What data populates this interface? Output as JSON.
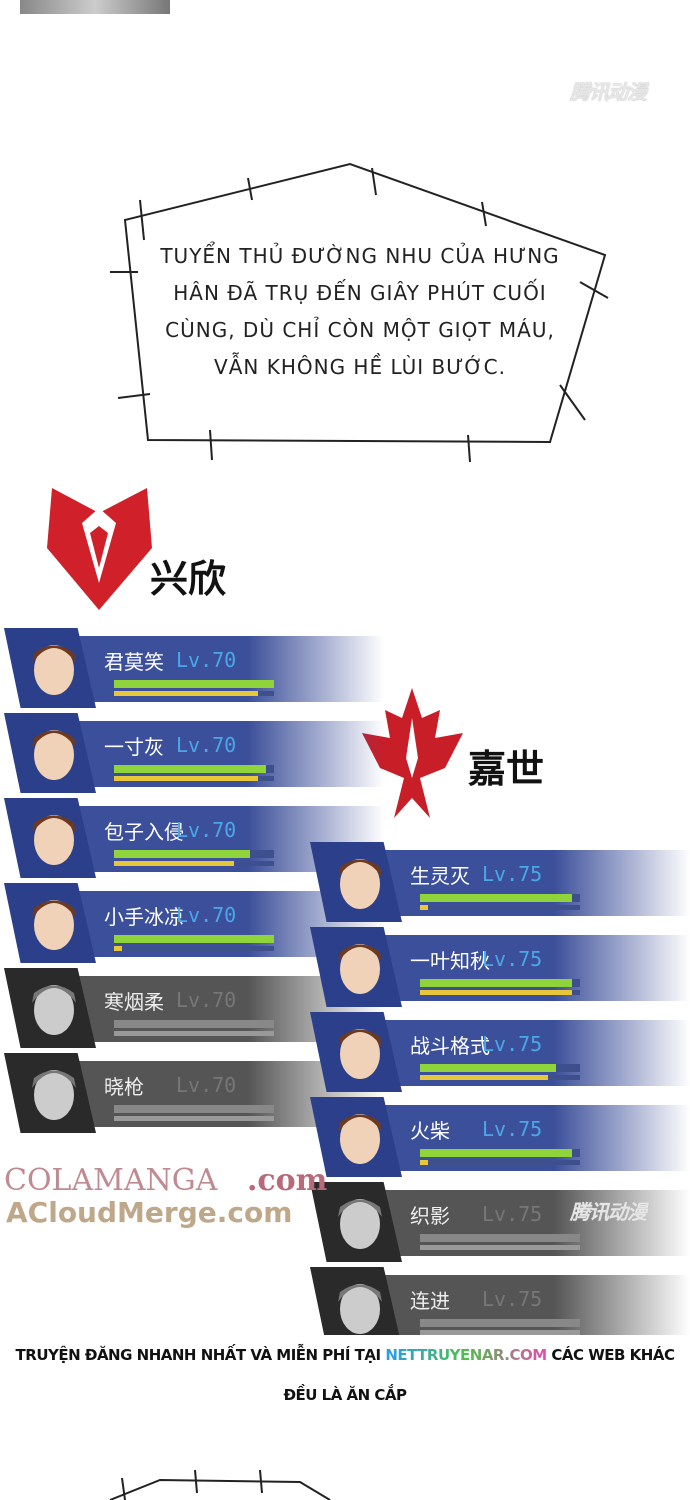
{
  "watermarks": {
    "tencent": "腾讯动漫",
    "colamanga": "COLAMANGA",
    "colamanga_tld": ".com",
    "acloud": "ACloudMerge.com"
  },
  "bubble": {
    "text": "TUYỂN THỦ ĐƯỜNG NHU CỦA HƯNG HÂN ĐÃ TRỤ ĐẾN GIÂY PHÚT CUỐI CÙNG, DÙ CHỈ CÒN MỘT GIỌT MÁU, VẪN KHÔNG HỀ LÙI BƯỚC."
  },
  "teams": [
    {
      "name": "兴欣",
      "color": "#d0202a",
      "players": [
        {
          "name": "君莫笑",
          "level": "Lv.70",
          "hp": 1.0,
          "mp": 0.9,
          "eliminated": false
        },
        {
          "name": "一寸灰",
          "level": "Lv.70",
          "hp": 0.95,
          "mp": 0.9,
          "eliminated": false
        },
        {
          "name": "包子入侵",
          "level": "Lv.70",
          "hp": 0.85,
          "mp": 0.75,
          "eliminated": false
        },
        {
          "name": "小手冰凉",
          "level": "Lv.70",
          "hp": 1.0,
          "mp": 0.05,
          "eliminated": false
        },
        {
          "name": "寒烟柔",
          "level": "Lv.70",
          "hp": 0,
          "mp": 0,
          "eliminated": true
        },
        {
          "name": "晓枪",
          "level": "Lv.70",
          "hp": 0,
          "mp": 0,
          "eliminated": true
        }
      ]
    },
    {
      "name": "嘉世",
      "color": "#c81e28",
      "players": [
        {
          "name": "生灵灭",
          "level": "Lv.75",
          "hp": 0.95,
          "mp": 0.05,
          "eliminated": false
        },
        {
          "name": "一叶知秋",
          "level": "Lv.75",
          "hp": 0.95,
          "mp": 0.95,
          "eliminated": false
        },
        {
          "name": "战斗格式",
          "level": "Lv.75",
          "hp": 0.85,
          "mp": 0.8,
          "eliminated": false
        },
        {
          "name": "火柴",
          "level": "Lv.75",
          "hp": 0.95,
          "mp": 0.05,
          "eliminated": false
        },
        {
          "name": "织影",
          "level": "Lv.75",
          "hp": 0,
          "mp": 0,
          "eliminated": true
        },
        {
          "name": "连进",
          "level": "Lv.75",
          "hp": 0,
          "mp": 0,
          "eliminated": true
        }
      ]
    }
  ],
  "footer": {
    "prefix": "TRUYỆN ĐĂNG NHANH NHẤT VÀ MIỄN PHÍ TẠI ",
    "site": "NETTRUYENAR.COM",
    "suffix": " CÁC WEB KHÁC ĐỀU LÀ ĂN CẮP"
  },
  "colors": {
    "hp": "#8fd43a",
    "mp": "#e8c63a",
    "band": "#3c4f9a",
    "band_dead": "#555555",
    "level": "#4aa8e8"
  }
}
